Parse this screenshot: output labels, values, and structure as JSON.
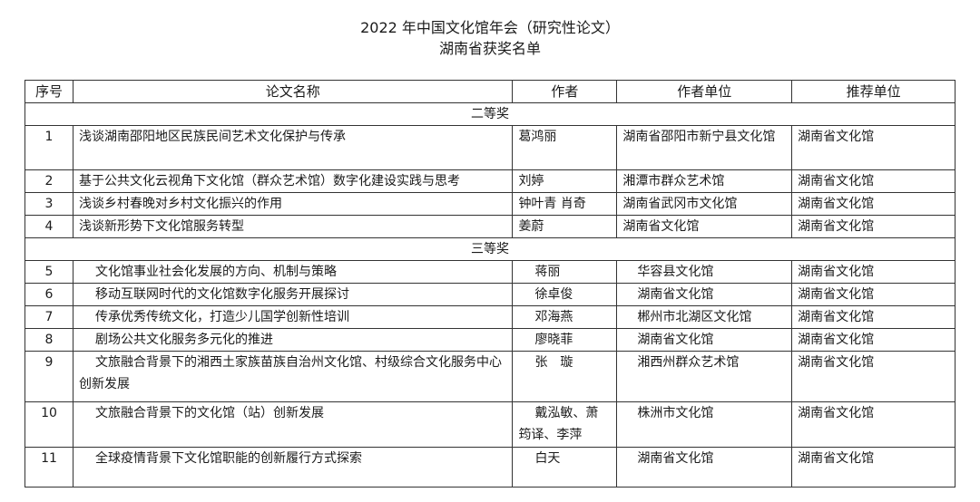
{
  "header": {
    "title": "2022 年中国文化馆年会（研究性论文）",
    "subtitle": "湖南省获奖名单"
  },
  "table": {
    "columns": [
      "序号",
      "论文名称",
      "作者",
      "作者单位",
      "推荐单位"
    ],
    "sections": [
      {
        "label": "二等奖",
        "rows": [
          {
            "no": "1",
            "title": "浅谈湖南邵阳地区民族民间艺术文化保护与传承",
            "author": "葛鸿丽",
            "unit": "湖南省邵阳市新宁县文化馆",
            "recommender": "湖南省文化馆"
          },
          {
            "no": "2",
            "title": "基于公共文化云视角下文化馆（群众艺术馆）数字化建设实践与思考",
            "author": "刘婷",
            "unit": "湘潭市群众艺术馆",
            "recommender": "湖南省文化馆"
          },
          {
            "no": "3",
            "title": "浅谈乡村春晚对乡村文化振兴的作用",
            "author": "钟叶青 肖奇",
            "unit": "湖南省武冈市文化馆",
            "recommender": "湖南省文化馆"
          },
          {
            "no": "4",
            "title": "浅谈新形势下文化馆服务转型",
            "author": "姜蔚",
            "unit": "湖南省文化馆",
            "recommender": "湖南省文化馆"
          }
        ]
      },
      {
        "label": "三等奖",
        "rows": [
          {
            "no": "5",
            "title": "文化馆事业社会化发展的方向、机制与策略",
            "author": "蒋丽",
            "unit": "华容县文化馆",
            "recommender": "湖南省文化馆"
          },
          {
            "no": "6",
            "title": "移动互联网时代的文化馆数字化服务开展探讨",
            "author": "徐卓俊",
            "unit": "湖南省文化馆",
            "recommender": "湖南省文化馆"
          },
          {
            "no": "7",
            "title": "传承优秀传统文化，打造少儿国学创新性培训",
            "author": "邓海燕",
            "unit": "郴州市北湖区文化馆",
            "recommender": "湖南省文化馆"
          },
          {
            "no": "8",
            "title": "剧场公共文化服务多元化的推进",
            "author": "廖晓菲",
            "unit": "湖南省文化馆",
            "recommender": "湖南省文化馆"
          },
          {
            "no": "9",
            "title": "文旅融合背景下的湘西土家族苗族自治州文化馆、村级综合文化服务中心创新发展",
            "author": "张　璇",
            "unit": "湘西州群众艺术馆",
            "recommender": "湖南省文化馆"
          },
          {
            "no": "10",
            "title": "文旅融合背景下的文化馆（站）创新发展",
            "author": "戴泓敏、萧筠译、李萍",
            "unit": "株洲市文化馆",
            "recommender": "湖南省文化馆"
          },
          {
            "no": "11",
            "title": "全球疫情背景下文化馆职能的创新履行方式探索",
            "author": "白天",
            "unit": "湖南省文化馆",
            "recommender": "湖南省文化馆"
          }
        ]
      }
    ]
  }
}
